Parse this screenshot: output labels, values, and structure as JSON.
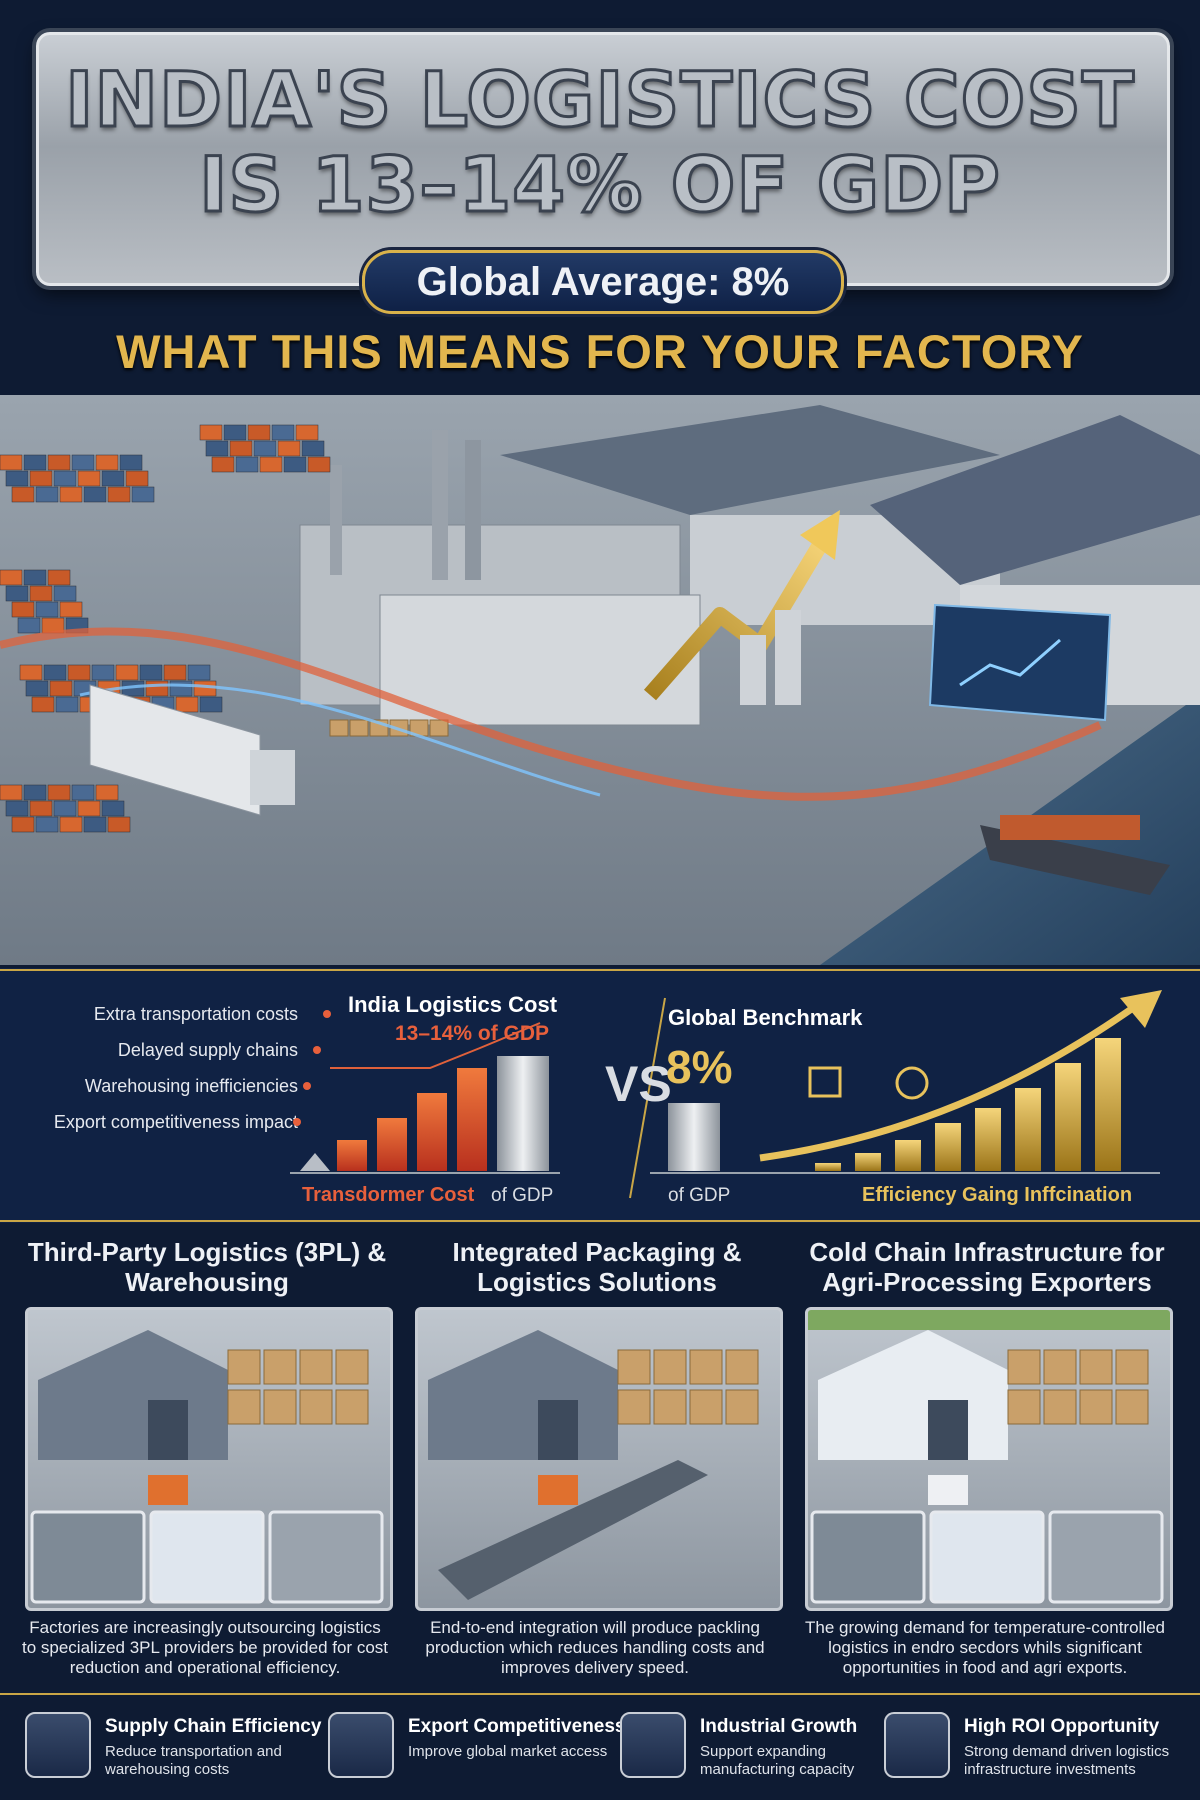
{
  "header": {
    "title_line1": "INDIA'S LOGISTICS COST",
    "title_line2": "IS 13–14% OF GDP",
    "badge": "Global Average: 8%",
    "subtitle": "WHAT THIS MEANS FOR YOUR FACTORY"
  },
  "comparison": {
    "india_title": "India Logistics Cost",
    "india_value": "13–14% of GDP",
    "factors": [
      "Extra transportation costs",
      "Delayed supply chains",
      "Warehousing inefficiencies",
      "Export competitiveness impact"
    ],
    "india_caption": "Transdormer Cost",
    "india_axis": "of GDP",
    "vs": "VS",
    "global_title": "Global Benchmark",
    "global_value": "8%",
    "global_axis": "of GDP",
    "global_caption": "Efficiency Gaing Inffcination"
  },
  "solutions": [
    {
      "title": "Third-Party Logistics (3PL) & Warehousing",
      "text": "Factories are increasingly outsourcing logistics to specialized 3PL providers be provided for cost reduction and operational efficiency."
    },
    {
      "title": "Integrated Packaging & Logistics Solutions",
      "text": "End-to-end integration will produce packling production which reduces handling costs and improves delivery speed."
    },
    {
      "title": "Cold Chain Infrastructure for Agri-Processing Exporters",
      "text": "The growing demand for temperature-controlled logistics in endro secdors whils significant opportunities in food and agri exports."
    }
  ],
  "benefits": [
    {
      "title": "Supply Chain Efficiency",
      "text": "Reduce transportation and warehousing costs"
    },
    {
      "title": "Export Competitiveness",
      "text": "Improve global market access"
    },
    {
      "title": "Industrial Growth",
      "text": "Support expanding manufacturing capacity"
    },
    {
      "title": "High ROI Opportunity",
      "text": "Strong demand driven logistics infrastructure investments"
    }
  ]
}
